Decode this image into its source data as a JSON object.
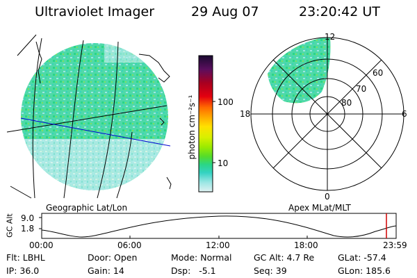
{
  "header": {
    "instrument": "Ultraviolet Imager",
    "date": "29 Aug 07",
    "time": "23:20:42 UT"
  },
  "colorbar": {
    "unit_label": "photon cm⁻²s⁻¹",
    "ticks": [
      "100",
      "10"
    ],
    "colors": [
      "#1a0a30",
      "#5a0e5e",
      "#a80020",
      "#e3000f",
      "#ff6a00",
      "#ffa800",
      "#ffe000",
      "#d8f000",
      "#9cea00",
      "#55dc2a",
      "#2ad686",
      "#34d2c2",
      "#9ae6e4",
      "#e0f2f2"
    ]
  },
  "geo_panel": {
    "caption": "Geographic Lat/Lon"
  },
  "polar_panel": {
    "caption": "Apex MLat/MLT",
    "mlt_labels": {
      "top": "12",
      "bottom": "0",
      "left": "18",
      "right": "6"
    },
    "lat_labels": [
      "60",
      "70",
      "80"
    ]
  },
  "altitude_plot": {
    "ylabel": "GC Alt",
    "yticks": [
      "9.0",
      "1.8"
    ],
    "xticks": [
      "00:00",
      "06:00",
      "12:00",
      "18:00",
      "23:59"
    ],
    "current_time_color": "#d00000"
  },
  "info": {
    "filter": "Flt: LBHL",
    "door": "Door: Open",
    "mode": "Mode: Normal",
    "gc_alt": "GC Alt: 4.7 Re",
    "glat": "GLat: -57.4",
    "ip": "IP: 36.0",
    "gain": "Gain: 14",
    "dsp": "Dsp:   -5.1",
    "seq": "Seq: 39",
    "glon": "GLon: 185.6"
  }
}
